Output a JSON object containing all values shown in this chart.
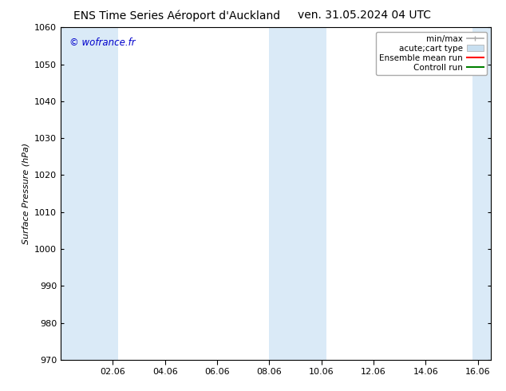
{
  "title_left": "ENS Time Series Aéroport d'Auckland",
  "title_right": "ven. 31.05.2024 04 UTC",
  "ylabel": "Surface Pressure (hPa)",
  "ylim": [
    970,
    1060
  ],
  "yticks": [
    970,
    980,
    990,
    1000,
    1010,
    1020,
    1030,
    1040,
    1050,
    1060
  ],
  "xlim": [
    0,
    16.5
  ],
  "xtick_labels": [
    "02.06",
    "04.06",
    "06.06",
    "08.06",
    "10.06",
    "12.06",
    "14.06",
    "16.06"
  ],
  "xtick_positions": [
    2.0,
    4.0,
    6.0,
    8.0,
    10.0,
    12.0,
    14.0,
    16.0
  ],
  "watermark": "© wofrance.fr",
  "watermark_color": "#0000cc",
  "bg_color": "#ffffff",
  "plot_bg_color": "#ffffff",
  "shaded_bands": [
    {
      "x_start": 0.0,
      "x_end": 2.2,
      "color": "#daeaf7"
    },
    {
      "x_start": 8.0,
      "x_end": 10.2,
      "color": "#daeaf7"
    },
    {
      "x_start": 15.8,
      "x_end": 16.5,
      "color": "#daeaf7"
    }
  ],
  "legend_entries": [
    {
      "label": "min/max",
      "color": "#aaaaaa",
      "lw": 1.2
    },
    {
      "label": "acute;cart type",
      "color": "#c8dff0",
      "lw": 8
    },
    {
      "label": "Ensemble mean run",
      "color": "#ff0000",
      "lw": 1.5
    },
    {
      "label": "Controll run",
      "color": "#008000",
      "lw": 1.5
    }
  ],
  "title_fontsize": 10,
  "label_fontsize": 8,
  "tick_fontsize": 8,
  "legend_fontsize": 7.5
}
